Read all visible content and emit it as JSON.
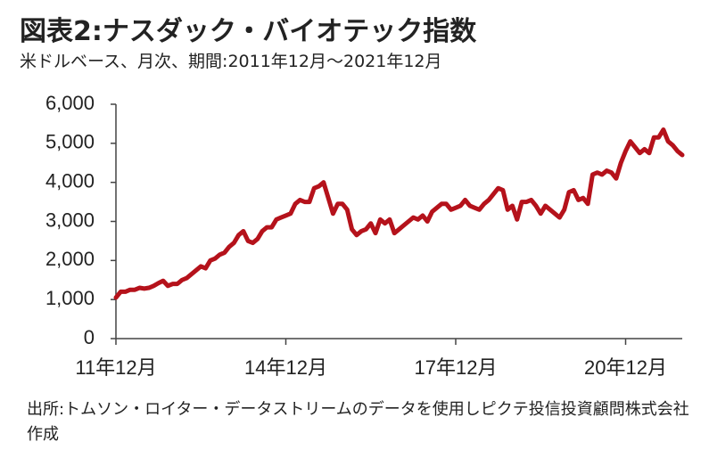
{
  "chart_data": {
    "type": "line",
    "title": "図表2:ナスダック・バイオテック指数",
    "subtitle": "米ドルベース、月次、期間:2011年12月～2021年12月",
    "source": "出所:トムソン・ロイター・データストリームのデータを使用しピクテ投信投資顧問株式会社作成",
    "categories": [
      "11年12月",
      null,
      null,
      null,
      null,
      null,
      null,
      null,
      null,
      null,
      null,
      null,
      null,
      null,
      null,
      null,
      null,
      null,
      null,
      null,
      null,
      null,
      null,
      null,
      null,
      null,
      null,
      null,
      null,
      null,
      null,
      null,
      null,
      null,
      null,
      null,
      "14年12月",
      null,
      null,
      null,
      null,
      null,
      null,
      null,
      null,
      null,
      null,
      null,
      null,
      null,
      null,
      null,
      null,
      null,
      null,
      null,
      null,
      null,
      null,
      null,
      null,
      null,
      null,
      null,
      null,
      null,
      null,
      null,
      null,
      null,
      null,
      null,
      "17年12月",
      null,
      null,
      null,
      null,
      null,
      null,
      null,
      null,
      null,
      null,
      null,
      null,
      null,
      null,
      null,
      null,
      null,
      null,
      null,
      null,
      null,
      null,
      null,
      null,
      null,
      null,
      null,
      null,
      null,
      null,
      null,
      null,
      null,
      null,
      null,
      "20年12月",
      null,
      null,
      null,
      null,
      null,
      null,
      null,
      null,
      null,
      null,
      null,
      null
    ],
    "series": [
      {
        "color": "#b5121b",
        "values": [
          1050,
          1200,
          1200,
          1250,
          1250,
          1300,
          1280,
          1300,
          1350,
          1420,
          1480,
          1350,
          1400,
          1400,
          1500,
          1550,
          1650,
          1750,
          1850,
          1800,
          2000,
          2050,
          2150,
          2200,
          2350,
          2450,
          2650,
          2750,
          2500,
          2450,
          2550,
          2750,
          2850,
          2850,
          3050,
          3100,
          3150,
          3200,
          3450,
          3550,
          3500,
          3500,
          3850,
          3900,
          4000,
          3600,
          3200,
          3450,
          3450,
          3300,
          2800,
          2650,
          2750,
          2800,
          2950,
          2700,
          3050,
          2950,
          3050,
          2700,
          2800,
          2900,
          3000,
          3100,
          3050,
          3150,
          3000,
          3250,
          3350,
          3450,
          3450,
          3300,
          3350,
          3400,
          3550,
          3400,
          3350,
          3300,
          3450,
          3550,
          3700,
          3850,
          3800,
          3300,
          3400,
          3050,
          3500,
          3500,
          3550,
          3400,
          3200,
          3400,
          3300,
          3200,
          3100,
          3300,
          3750,
          3800,
          3550,
          3600,
          3450,
          4200,
          4250,
          4200,
          4300,
          4250,
          4100,
          4500,
          4800,
          5050,
          4900,
          4750,
          4850,
          4750,
          5150,
          5150,
          5350,
          5050,
          4950,
          4800,
          4700
        ]
      }
    ],
    "ylim": [
      0,
      6000
    ],
    "yticks": [
      0,
      {
        "value": 1000,
        "label": "1,000"
      },
      {
        "value": 2000,
        "label": "2,000"
      },
      {
        "value": 3000,
        "label": "3,000"
      },
      {
        "value": 4000,
        "label": "4,000"
      },
      {
        "value": 5000,
        "label": "5,000"
      },
      {
        "value": 6000,
        "label": "6,000"
      }
    ],
    "grid": false
  }
}
